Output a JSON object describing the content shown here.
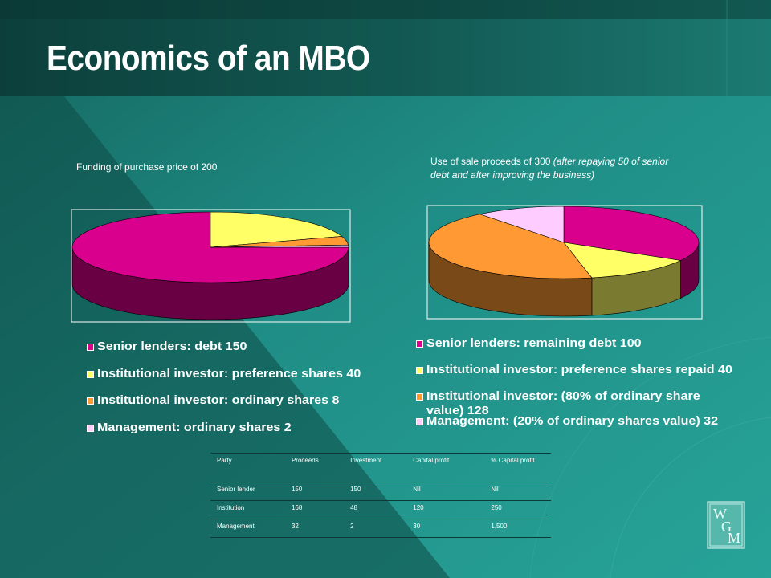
{
  "slide": {
    "title": "Economics of an MBO",
    "colors": {
      "background": "#1e8a82",
      "band": "#0f4a45",
      "text": "#ffffff"
    }
  },
  "chart_data": [
    {
      "type": "pie",
      "title": "Funding of purchase price of 200",
      "labels": [
        "Senior lenders: debt 150",
        "Institutional investor: preference shares 40",
        "Institutional investor: ordinary shares 8",
        "Management: ordinary shares 2"
      ],
      "values": [
        150,
        40,
        8,
        2
      ],
      "colors": [
        "#d8008c",
        "#ffff66",
        "#ff9933",
        "#ffccff"
      ],
      "legend": "bottom"
    },
    {
      "type": "pie",
      "title": "Use of sale proceeds of 300",
      "subtitle": "(after repaying 50 of senior debt and after improving the business)",
      "labels": [
        "Senior lenders: remaining debt 100",
        "Institutional investor: preference shares repaid 40",
        "Institutional investor: (80% of ordinary share value) 128",
        "Management: (20% of ordinary shares value) 32"
      ],
      "values": [
        100,
        40,
        128,
        32
      ],
      "colors": [
        "#d8008c",
        "#ffff66",
        "#ff9933",
        "#ffccff"
      ],
      "legend": "bottom"
    }
  ],
  "table": {
    "headers": [
      "Party",
      "Proceeds",
      "Investment",
      "Capital profit",
      "% Capital profit"
    ],
    "rows": [
      [
        "Senior lender",
        "150",
        "150",
        "Nil",
        "Nil"
      ],
      [
        "Institution",
        "168",
        "48",
        "120",
        "250"
      ],
      [
        "Management",
        "32",
        "2",
        "30",
        "1,500"
      ]
    ]
  },
  "logo": {
    "letters": [
      "W",
      "G",
      "M"
    ]
  }
}
